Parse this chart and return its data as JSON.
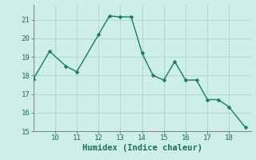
{
  "x_data": [
    9.0,
    9.75,
    10.5,
    11.0,
    12.0,
    12.5,
    13.0,
    13.5,
    14.0,
    14.5,
    15.0,
    15.5,
    16.0,
    16.5,
    17.0,
    17.5,
    18.0,
    18.75
  ],
  "y_data": [
    17.8,
    19.3,
    18.5,
    18.2,
    20.2,
    21.2,
    21.15,
    21.15,
    19.2,
    18.0,
    17.75,
    18.75,
    17.75,
    17.75,
    16.7,
    16.7,
    16.3,
    15.2
  ],
  "line_color": "#1a7a6e",
  "marker_color": "#1a7a6e",
  "bg_color": "#ceeee8",
  "grid_color": "#b8d8d2",
  "xlabel": "Humidex (Indice chaleur)",
  "xlim": [
    9.0,
    19.0
  ],
  "ylim": [
    15,
    21.8
  ],
  "xticks": [
    10,
    11,
    12,
    13,
    14,
    15,
    16,
    17,
    18
  ],
  "yticks": [
    15,
    16,
    17,
    18,
    19,
    20,
    21
  ],
  "xlabel_fontsize": 7.5,
  "tick_fontsize": 6.5,
  "line_width": 1.0,
  "marker_size": 2.5
}
